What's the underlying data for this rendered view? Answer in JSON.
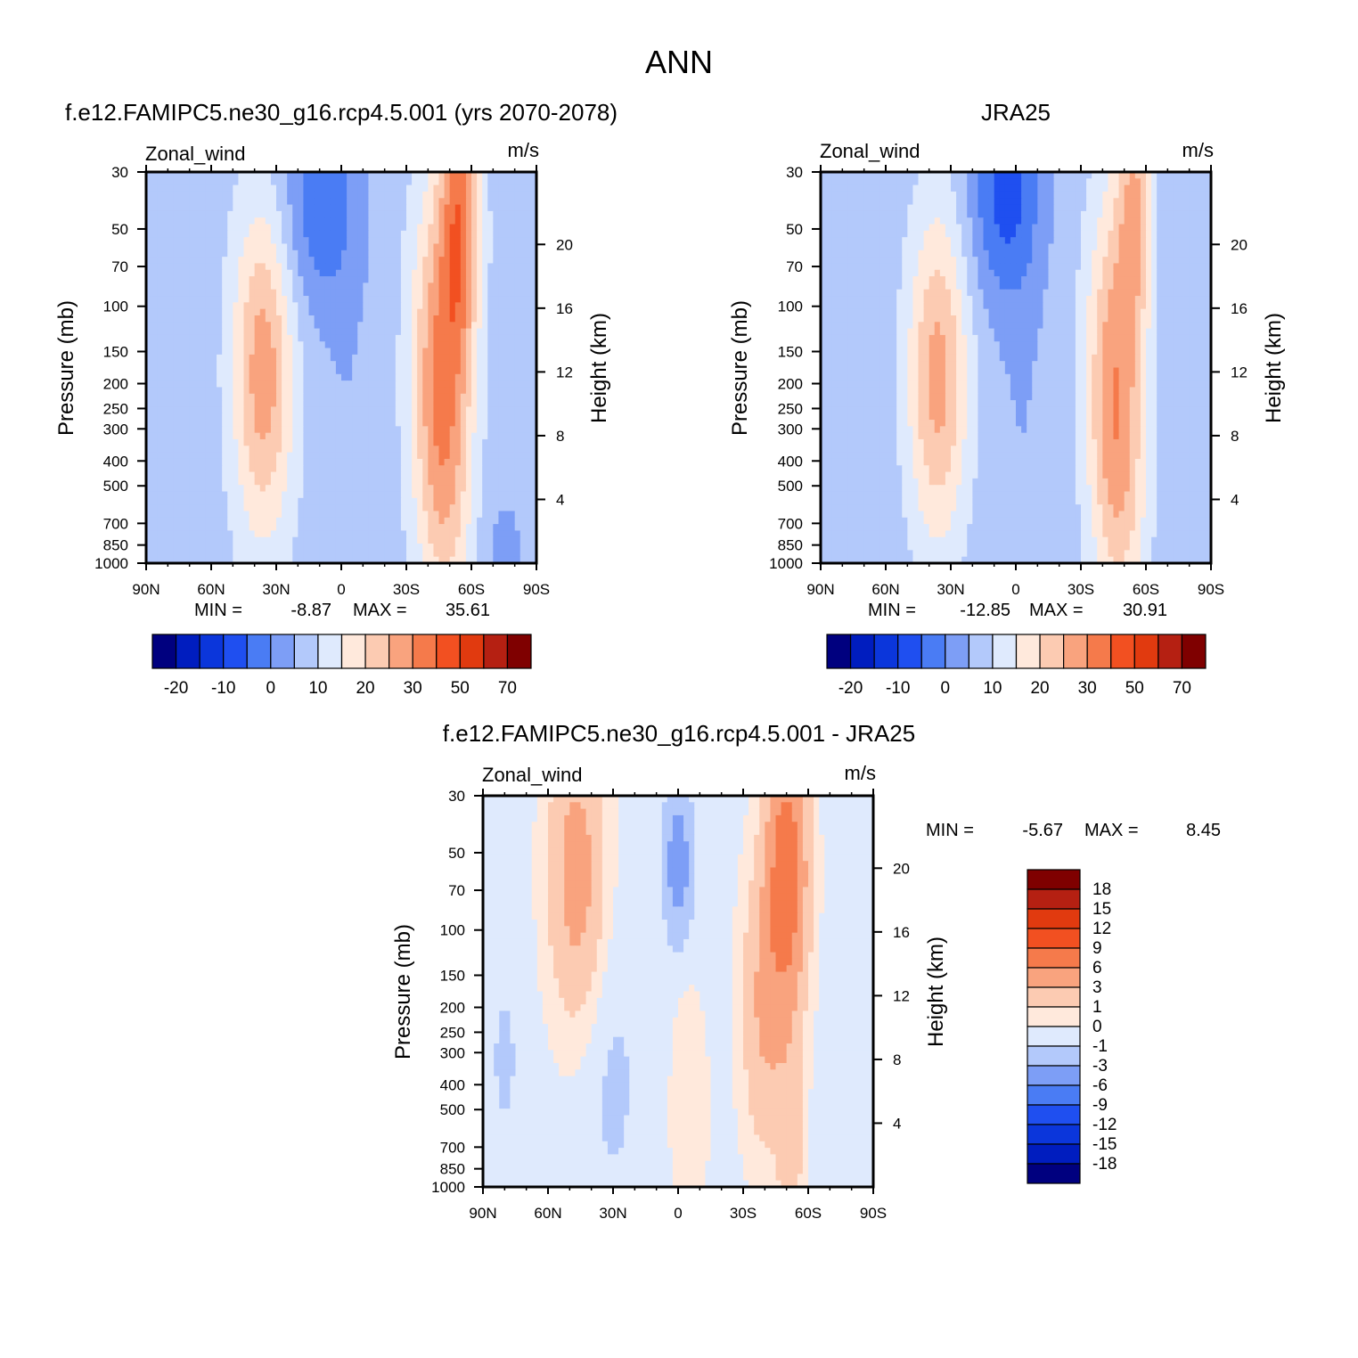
{
  "figure_title": "ANN",
  "palettes": {
    "abs": [
      "#00007f",
      "#001dbf",
      "#0b36db",
      "#1f4ff0",
      "#4a7cf4",
      "#7d9ef6",
      "#b3c9fb",
      "#dfeafd",
      "#ffe9dc",
      "#fccbb2",
      "#f9a37e",
      "#f57a4b",
      "#f25021",
      "#e13a0f",
      "#b52012",
      "#7f0000"
    ],
    "diff": [
      "#00007f",
      "#001dbf",
      "#0b36db",
      "#1f4ff0",
      "#4a7cf4",
      "#7d9ef6",
      "#b3c9fb",
      "#dfeafd",
      "#ffe9dc",
      "#fccbb2",
      "#f9a37e",
      "#f57a4b",
      "#f25021",
      "#e13a0f",
      "#b52012",
      "#7f0000"
    ]
  },
  "chart_data": [
    {
      "type": "heatmap",
      "id": "model",
      "title": "f.e12.FAMIPC5.ne30_g16.rcp4.5.001 (yrs 2070-2078)",
      "variable": "Zonal_wind",
      "units": "m/s",
      "ylabel": "Pressure (mb)",
      "y2label": "Height (km)",
      "x_ticks": [
        "90N",
        "60N",
        "30N",
        "0",
        "30S",
        "60S",
        "90S"
      ],
      "y_ticks": [
        30,
        50,
        70,
        100,
        150,
        200,
        250,
        300,
        400,
        500,
        700,
        850,
        1000
      ],
      "y2_ticks": [
        20,
        16,
        12,
        8,
        4
      ],
      "ylim": [
        1000,
        30
      ],
      "stats": {
        "min": "-8.87",
        "max": "35.61",
        "min_label": "MIN =",
        "max_label": "MAX ="
      },
      "colorbar_labels": [
        "-20",
        "-10",
        "0",
        "10",
        "20",
        "30",
        "50",
        "70"
      ],
      "palette": "abs",
      "field": {
        "base": 2.5,
        "centers": [
          {
            "lat": 36,
            "p": 180,
            "amp": 20.5,
            "wlat": 14,
            "wz": 1.5
          },
          {
            "lat": -45,
            "p": 180,
            "amp": 21,
            "wlat": 13,
            "wz": 1.7
          },
          {
            "lat": -55,
            "p": 45,
            "amp": 22,
            "wlat": 9,
            "wz": 1.3
          },
          {
            "lat": -50,
            "p": 600,
            "amp": 7,
            "wlat": 12,
            "wz": 1.2
          },
          {
            "lat": 10,
            "p": 40,
            "amp": -11,
            "wlat": 18,
            "wz": 1.0
          },
          {
            "lat": -3,
            "p": 200,
            "amp": -2,
            "wlat": 10,
            "wz": 2.0
          },
          {
            "lat": -75,
            "p": 900,
            "amp": -4,
            "wlat": 10,
            "wz": 0.6
          }
        ]
      },
      "contour_levels": [
        -25,
        -20,
        -15,
        -10,
        -5,
        0,
        5,
        10,
        15,
        20,
        25,
        30,
        40,
        50,
        60,
        70
      ]
    },
    {
      "type": "heatmap",
      "id": "obs",
      "title": "JRA25",
      "variable": "Zonal_wind",
      "units": "m/s",
      "ylabel": "Pressure (mb)",
      "y2label": "Height (km)",
      "x_ticks": [
        "90N",
        "60N",
        "30N",
        "0",
        "30S",
        "60S",
        "90S"
      ],
      "y_ticks": [
        30,
        50,
        70,
        100,
        150,
        200,
        250,
        300,
        400,
        500,
        700,
        850,
        1000
      ],
      "y2_ticks": [
        20,
        16,
        12,
        8,
        4
      ],
      "ylim": [
        1000,
        30
      ],
      "stats": {
        "min": "-12.85",
        "max": "30.91",
        "min_label": "MIN =",
        "max_label": "MAX ="
      },
      "colorbar_labels": [
        "-20",
        "-10",
        "0",
        "10",
        "20",
        "30",
        "50",
        "70"
      ],
      "palette": "abs",
      "field": {
        "base": 2.0,
        "centers": [
          {
            "lat": 36,
            "p": 190,
            "amp": 20,
            "wlat": 14,
            "wz": 1.5
          },
          {
            "lat": -45,
            "p": 190,
            "amp": 20,
            "wlat": 13,
            "wz": 1.7
          },
          {
            "lat": -55,
            "p": 40,
            "amp": 16,
            "wlat": 8,
            "wz": 1.2
          },
          {
            "lat": -50,
            "p": 600,
            "amp": 7,
            "wlat": 12,
            "wz": 1.2
          },
          {
            "lat": 5,
            "p": 35,
            "amp": -14,
            "wlat": 16,
            "wz": 1.0
          },
          {
            "lat": -3,
            "p": 200,
            "amp": -2,
            "wlat": 10,
            "wz": 2.0
          }
        ]
      },
      "contour_levels": [
        -25,
        -20,
        -15,
        -10,
        -5,
        0,
        5,
        10,
        15,
        20,
        25,
        30,
        40,
        50,
        60,
        70
      ]
    },
    {
      "type": "heatmap",
      "id": "diff",
      "title": "f.e12.FAMIPC5.ne30_g16.rcp4.5.001 - JRA25",
      "variable": "Zonal_wind",
      "units": "m/s",
      "ylabel": "Pressure (mb)",
      "y2label": "Height (km)",
      "x_ticks": [
        "90N",
        "60N",
        "30N",
        "0",
        "30S",
        "60S",
        "90S"
      ],
      "y_ticks": [
        30,
        50,
        70,
        100,
        150,
        200,
        250,
        300,
        400,
        500,
        700,
        850,
        1000
      ],
      "y2_ticks": [
        20,
        16,
        12,
        8,
        4
      ],
      "ylim": [
        1000,
        30
      ],
      "stats": {
        "min": "-5.67",
        "max": "8.45",
        "min_label": "MIN =",
        "max_label": "MAX ="
      },
      "colorbar_labels": [
        "18",
        "15",
        "12",
        "9",
        "6",
        "3",
        "1",
        "0",
        "-1",
        "-3",
        "-6",
        "-9",
        "-12",
        "-15",
        "-18"
      ],
      "palette": "diff",
      "field": {
        "base": -0.3,
        "centers": [
          {
            "lat": 47,
            "p": 60,
            "amp": 4.5,
            "wlat": 12,
            "wz": 1.2
          },
          {
            "lat": -50,
            "p": 60,
            "amp": 8.5,
            "wlat": 9,
            "wz": 1.2
          },
          {
            "lat": -40,
            "p": 200,
            "amp": 3.5,
            "wlat": 10,
            "wz": 1.2
          },
          {
            "lat": 0,
            "p": 55,
            "amp": -4.5,
            "wlat": 6,
            "wz": 0.6
          },
          {
            "lat": 30,
            "p": 400,
            "amp": -0.9,
            "wlat": 14,
            "wz": 1.3
          },
          {
            "lat": 80,
            "p": 320,
            "amp": -1.8,
            "wlat": 4,
            "wz": 0.5
          },
          {
            "lat": -52,
            "p": 700,
            "amp": 2.2,
            "wlat": 6,
            "wz": 0.9
          },
          {
            "lat": -5,
            "p": 500,
            "amp": 1.2,
            "wlat": 8,
            "wz": 1.0
          }
        ]
      },
      "contour_levels": [
        -18,
        -15,
        -12,
        -9,
        -6,
        -3,
        -1,
        0,
        1,
        3,
        6,
        9,
        12,
        15,
        18
      ]
    }
  ]
}
